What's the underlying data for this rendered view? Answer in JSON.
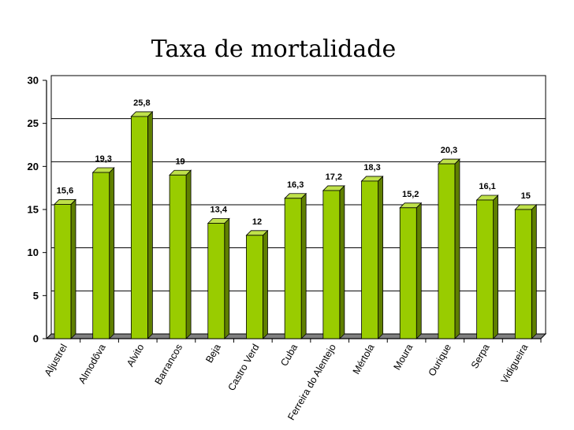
{
  "chart_data": {
    "type": "bar",
    "title": "Taxa de mortalidade",
    "xlabel": "",
    "ylabel": "",
    "categories": [
      "Aljustrel",
      "Almodôva",
      "Alvito",
      "Barrancos",
      "Beja",
      "Castro Verd",
      "Cuba",
      "Ferreira do Alentejo",
      "Mértola",
      "Moura",
      "Ourique",
      "Serpa",
      "Vidigueira"
    ],
    "values": [
      15.6,
      19.3,
      25.8,
      19,
      13.4,
      12,
      16.3,
      17.2,
      18.3,
      15.2,
      20.3,
      16.1,
      15
    ],
    "value_labels": [
      "15,6",
      "19,3",
      "25,8",
      "19",
      "13,4",
      "12",
      "16,3",
      "17,2",
      "18,3",
      "15,2",
      "20,3",
      "16,1",
      "15"
    ],
    "ylim": [
      0,
      30
    ],
    "yticks": [
      0,
      5,
      10,
      15,
      20,
      25,
      30
    ],
    "grid": true,
    "legend": "none",
    "bar_color": "#99cc00",
    "bar_side_color": "#5f7f00",
    "bar_top_color": "#bfe14a",
    "bar_edge_color": "#000000",
    "floor_color": "#808080"
  }
}
